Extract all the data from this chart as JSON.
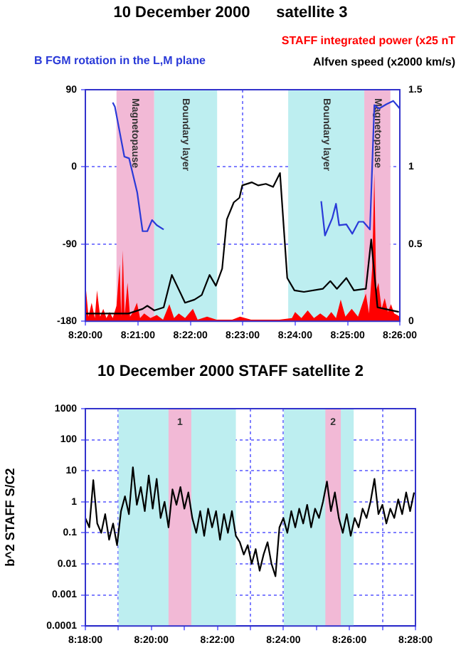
{
  "chart_data": [
    {
      "type": "line",
      "title": "10 December 2000      satellite 3",
      "marker": "none",
      "grid": true,
      "xlim": [
        8.3333,
        8.4333
      ],
      "xticks": [
        {
          "value": 8.3333,
          "label": "8:20:00"
        },
        {
          "value": 8.35,
          "label": "8:21:00"
        },
        {
          "value": 8.3667,
          "label": "8:22:00"
        },
        {
          "value": 8.3833,
          "label": "8:23:00"
        },
        {
          "value": 8.4,
          "label": "8:24:00"
        },
        {
          "value": 8.4167,
          "label": "8:25:00"
        },
        {
          "value": 8.4333,
          "label": "8:26:00"
        }
      ],
      "ylim": [
        -180,
        90
      ],
      "yticks": [
        -180,
        -90,
        0,
        90
      ],
      "y2lim": [
        0,
        1.5
      ],
      "y2ticks": [
        0,
        0.5,
        1,
        1.5
      ],
      "bands": [
        {
          "axis": "x",
          "from": 8.3432,
          "to": 8.3552,
          "label": "Magnetopause",
          "color": "#f2b9d6"
        },
        {
          "axis": "x",
          "from": 8.3552,
          "to": 8.3752,
          "label": "Boundary layer",
          "color": "#bdeef0"
        },
        {
          "axis": "x",
          "from": 8.3978,
          "to": 8.422,
          "label": "Boundary layer",
          "color": "#bdeef0"
        },
        {
          "axis": "x",
          "from": 8.422,
          "to": 8.4303,
          "label": "Magnetopause",
          "color": "#f2b9d6"
        }
      ],
      "series": [
        {
          "name": "STAFF integrated power (x25 nT",
          "type": "area",
          "axis": "y2",
          "color": "#ff0000",
          "x": [
            8.3333,
            8.3343,
            8.3353,
            8.3363,
            8.337,
            8.338,
            8.339,
            8.34,
            8.341,
            8.342,
            8.3432,
            8.3442,
            8.3447,
            8.3452,
            8.3458,
            8.3467,
            8.3475,
            8.3485,
            8.3497,
            8.3507,
            8.352,
            8.354,
            8.356,
            8.358,
            8.36,
            8.3615,
            8.363,
            8.365,
            8.3675,
            8.369,
            8.372,
            8.375,
            8.38,
            8.3825,
            8.386,
            8.39,
            8.395,
            8.399,
            8.4,
            8.402,
            8.404,
            8.406,
            8.408,
            8.41,
            8.4115,
            8.413,
            8.4145,
            8.416,
            8.418,
            8.42,
            8.4215,
            8.4225,
            8.4235,
            8.4245,
            8.4252,
            8.4258,
            8.4265,
            8.4275,
            8.4285,
            8.4295,
            8.4305,
            8.4315,
            8.4325,
            8.4333
          ],
          "values": [
            0.25,
            0.03,
            0.12,
            0.02,
            0.2,
            0.03,
            0.08,
            0.02,
            0.06,
            0.02,
            0.1,
            0.37,
            0.03,
            0.46,
            0.04,
            0.25,
            0.03,
            0.06,
            0.12,
            0.02,
            0.05,
            0.02,
            0.04,
            0.01,
            0.11,
            0.02,
            0.05,
            0.02,
            0.08,
            0.01,
            0.03,
            0.01,
            0.01,
            0.03,
            0.01,
            0.01,
            0.01,
            0.02,
            0.06,
            0.02,
            0.07,
            0.02,
            0.05,
            0.02,
            0.06,
            0.02,
            0.14,
            0.03,
            0.08,
            0.03,
            0.12,
            0.18,
            0.05,
            0.34,
            0.96,
            0.2,
            0.25,
            0.08,
            0.15,
            0.06,
            0.11,
            0.05,
            0.04,
            0.03
          ]
        },
        {
          "name": "B FGM rotation in the L,M plane",
          "type": "line",
          "color": "#2a3ad8",
          "x": [
            8.342,
            8.3427,
            8.3457,
            8.3472,
            8.3498,
            8.3515,
            8.353,
            8.3545,
            8.356,
            8.3582,
            8.38,
            8.4083,
            8.4095,
            8.4118,
            8.413,
            8.414,
            8.4163,
            8.4182,
            8.4202,
            8.4217,
            8.4238,
            8.4247,
            8.4252,
            8.4267,
            8.429,
            8.4312,
            8.4333
          ],
          "values": [
            75,
            70,
            12,
            10,
            -30,
            -75,
            -75,
            -62,
            -68,
            -73,
            null,
            -40,
            -80,
            -60,
            -43,
            -68,
            -67,
            -78,
            -64,
            -64,
            -73,
            20,
            72,
            68,
            73,
            77,
            68
          ]
        },
        {
          "name": "Alfven speed (x2000 km/s)",
          "type": "line",
          "axis": "y2",
          "color": "#000000",
          "x": [
            8.3333,
            8.347,
            8.3515,
            8.353,
            8.3552,
            8.3582,
            8.3608,
            8.365,
            8.368,
            8.3703,
            8.3728,
            8.3748,
            8.3768,
            8.3783,
            8.3805,
            8.3823,
            8.3832,
            8.3862,
            8.3883,
            8.3907,
            8.393,
            8.3952,
            8.3975,
            8.3998,
            8.4028,
            8.4088,
            8.4112,
            8.4133,
            8.4163,
            8.4187,
            8.4225,
            8.4242,
            8.4262,
            8.4285,
            8.433
          ],
          "values": [
            0.05,
            0.05,
            0.08,
            0.1,
            0.07,
            0.09,
            0.3,
            0.12,
            0.14,
            0.17,
            0.3,
            0.23,
            0.34,
            0.66,
            0.77,
            0.8,
            0.88,
            0.9,
            0.88,
            0.89,
            0.87,
            0.96,
            0.28,
            0.2,
            0.19,
            0.21,
            0.26,
            0.21,
            0.28,
            0.2,
            0.21,
            0.53,
            0.09,
            0.08,
            0.06
          ]
        }
      ]
    },
    {
      "type": "line",
      "title": "10 December 2000 STAFF satellite 2",
      "ylabel": "b^2 STAFF S/C2",
      "marker": "none",
      "grid": true,
      "log": "y",
      "xlim": [
        8.3,
        8.4667
      ],
      "xticks": [
        {
          "value": 8.3,
          "label": "8:18:00"
        },
        {
          "value": 8.3167,
          "label": null
        },
        {
          "value": 8.3333,
          "label": "8:20:00"
        },
        {
          "value": 8.35,
          "label": null
        },
        {
          "value": 8.3667,
          "label": "8:22:00"
        },
        {
          "value": 8.3833,
          "label": null
        },
        {
          "value": 8.4,
          "label": "8:24:00"
        },
        {
          "value": 8.4167,
          "label": null
        },
        {
          "value": 8.4333,
          "label": "8:26:00"
        },
        {
          "value": 8.45,
          "label": null
        },
        {
          "value": 8.4667,
          "label": "8:28:00"
        }
      ],
      "ylim": [
        0.0001,
        1000
      ],
      "yticks": [
        0.0001,
        0.001,
        0.01,
        0.1,
        1,
        10,
        100,
        1000
      ],
      "bands": [
        {
          "axis": "x",
          "from": 8.3167,
          "to": 8.376,
          "color": "#bdeef0"
        },
        {
          "axis": "x",
          "from": 8.342,
          "to": 8.3535,
          "label": "1",
          "color": "#f2b9d6"
        },
        {
          "axis": "x",
          "from": 8.4002,
          "to": 8.4355,
          "color": "#bdeef0"
        },
        {
          "axis": "x",
          "from": 8.4212,
          "to": 8.429,
          "label": "2",
          "color": "#f2b9d6"
        }
      ],
      "series": [
        {
          "type": "line",
          "color": "#000000",
          "x": [
            8.3,
            8.302,
            8.304,
            8.306,
            8.308,
            8.31,
            8.312,
            8.314,
            8.316,
            8.318,
            8.32,
            8.322,
            8.324,
            8.326,
            8.328,
            8.33,
            8.332,
            8.334,
            8.336,
            8.338,
            8.34,
            8.342,
            8.344,
            8.346,
            8.348,
            8.35,
            8.352,
            8.354,
            8.356,
            8.358,
            8.36,
            8.362,
            8.364,
            8.366,
            8.368,
            8.37,
            8.372,
            8.374,
            8.376,
            8.378,
            8.38,
            8.382,
            8.384,
            8.386,
            8.388,
            8.39,
            8.392,
            8.394,
            8.396,
            8.398,
            8.4,
            8.402,
            8.404,
            8.406,
            8.408,
            8.41,
            8.412,
            8.414,
            8.416,
            8.418,
            8.42,
            8.422,
            8.424,
            8.426,
            8.428,
            8.43,
            8.432,
            8.434,
            8.436,
            8.438,
            8.44,
            8.442,
            8.444,
            8.446,
            8.448,
            8.45,
            8.452,
            8.454,
            8.456,
            8.458,
            8.46,
            8.462,
            8.464,
            8.466
          ],
          "values": [
            0.3,
            0.15,
            5,
            0.2,
            0.1,
            0.4,
            0.06,
            0.2,
            0.04,
            0.5,
            1.5,
            0.4,
            13,
            0.8,
            3,
            0.5,
            7,
            0.6,
            5.5,
            0.3,
            1,
            0.15,
            2.5,
            0.8,
            3,
            0.6,
            2,
            0.3,
            0.1,
            0.5,
            0.08,
            0.6,
            0.15,
            0.5,
            0.06,
            0.4,
            0.1,
            0.5,
            0.08,
            0.05,
            0.02,
            0.04,
            0.01,
            0.03,
            0.006,
            0.02,
            0.05,
            0.01,
            0.004,
            0.15,
            0.3,
            0.1,
            0.5,
            0.15,
            0.6,
            0.2,
            0.8,
            0.15,
            0.6,
            0.3,
            1,
            4.5,
            0.5,
            2,
            0.3,
            0.1,
            0.4,
            0.08,
            0.3,
            0.15,
            0.6,
            0.3,
            1,
            5.5,
            0.4,
            0.8,
            0.2,
            0.6,
            0.3,
            1.2,
            0.4,
            2,
            0.5,
            2
          ]
        }
      ]
    }
  ]
}
